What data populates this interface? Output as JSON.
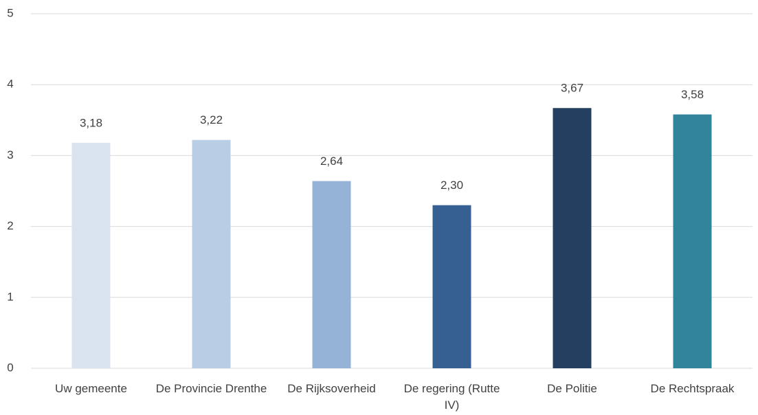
{
  "chart_data": {
    "type": "bar",
    "categories": [
      "Uw gemeente",
      "De Provincie Drenthe",
      "De Rijksoverheid",
      "De regering (Rutte IV)",
      "De Politie",
      "De Rechtspraak"
    ],
    "values": [
      3.18,
      3.22,
      2.64,
      2.3,
      3.67,
      3.58
    ],
    "value_labels": [
      "3,18",
      "3,22",
      "2,64",
      "2,30",
      "3,67",
      "3,58"
    ],
    "colors": [
      "#dae3f0",
      "#b9cde5",
      "#95b3d7",
      "#366092",
      "#243f60",
      "#31849b"
    ],
    "ylim": [
      0,
      5
    ],
    "yticks": [
      0,
      1,
      2,
      3,
      4,
      5
    ],
    "grid": true
  }
}
